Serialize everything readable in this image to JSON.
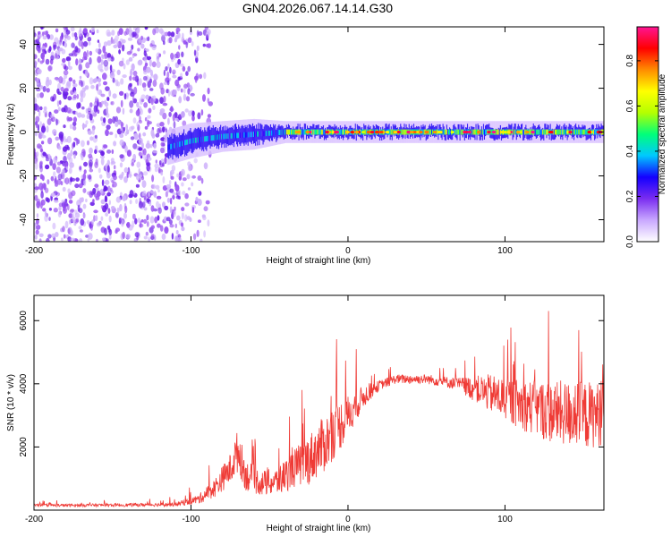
{
  "title": "GN04.2026.067.14.14.G30",
  "colors": {
    "snr_line": "#ef3b36",
    "noise_purple": "#8a2be2",
    "frame": "#000000"
  },
  "chart_data": [
    {
      "type": "heatmap",
      "name": "spectrogram",
      "xlabel": "Height of straight line (km)",
      "ylabel": "Frequency (Hz)",
      "xlim": [
        -200,
        163
      ],
      "ylim": [
        -50,
        48
      ],
      "xticks": [
        -200,
        -100,
        0,
        100
      ],
      "xtick_labels": [
        "-200",
        "-100",
        "0",
        "100"
      ],
      "yticks": [
        -40,
        -20,
        0,
        20,
        40
      ],
      "ytick_labels": [
        "-40",
        "-20",
        "0",
        "20",
        "40"
      ],
      "colorbar": {
        "label": "Normalized spectral amplitude",
        "range": [
          0,
          0.95
        ],
        "ticks": [
          0,
          0.2,
          0.4,
          0.6,
          0.8
        ],
        "tick_labels": [
          "0.0",
          "0.2",
          "0.4",
          "0.6",
          "0.8"
        ],
        "colormap": [
          "#ffffff",
          "#c9a8ff",
          "#7a2df0",
          "#1400ff",
          "#00c8ff",
          "#00ff7a",
          "#b4ff00",
          "#ffff00",
          "#ff8c00",
          "#ff0000",
          "#ff1493"
        ]
      },
      "ridge": {
        "description": "signal ridge centered near 0 Hz",
        "x": [
          -115,
          -100,
          -80,
          -60,
          -40,
          -20,
          0,
          50,
          100,
          163
        ],
        "center_hz": [
          -7,
          -4,
          -2,
          -1,
          0,
          0,
          0,
          0,
          0,
          0
        ],
        "halfwidth_hz": [
          6,
          6,
          5,
          5,
          3,
          3,
          3,
          3,
          3,
          3
        ]
      },
      "noise_region": {
        "x_start": -200,
        "x_end": -105
      }
    },
    {
      "type": "line",
      "name": "snr",
      "xlabel": "Height of straight line (km)",
      "ylabel": "SNR (10 * v/v)",
      "xlim": [
        -200,
        163
      ],
      "ylim": [
        0,
        6800
      ],
      "xticks": [
        -200,
        -100,
        0,
        100
      ],
      "xtick_labels": [
        "-200",
        "-100",
        "0",
        "100"
      ],
      "yticks": [
        2000,
        4000,
        6000
      ],
      "ytick_labels": [
        "2000",
        "4000",
        "6000"
      ],
      "series": [
        {
          "name": "SNR",
          "x": [
            -200,
            -150,
            -110,
            -95,
            -85,
            -75,
            -70,
            -65,
            -55,
            -45,
            -35,
            -25,
            -15,
            -5,
            10,
            20,
            30,
            50,
            70,
            90,
            110,
            130,
            150,
            163
          ],
          "y": [
            150,
            160,
            180,
            350,
            700,
            1300,
            1900,
            1100,
            850,
            900,
            1300,
            1600,
            2100,
            2700,
            3600,
            3950,
            4150,
            4150,
            4000,
            3700,
            3350,
            3100,
            3000,
            3050
          ],
          "jitter": [
            40,
            50,
            60,
            150,
            300,
            500,
            700,
            500,
            400,
            450,
            600,
            800,
            900,
            800,
            350,
            150,
            150,
            150,
            200,
            600,
            800,
            1000,
            1100,
            1000
          ]
        }
      ]
    }
  ]
}
